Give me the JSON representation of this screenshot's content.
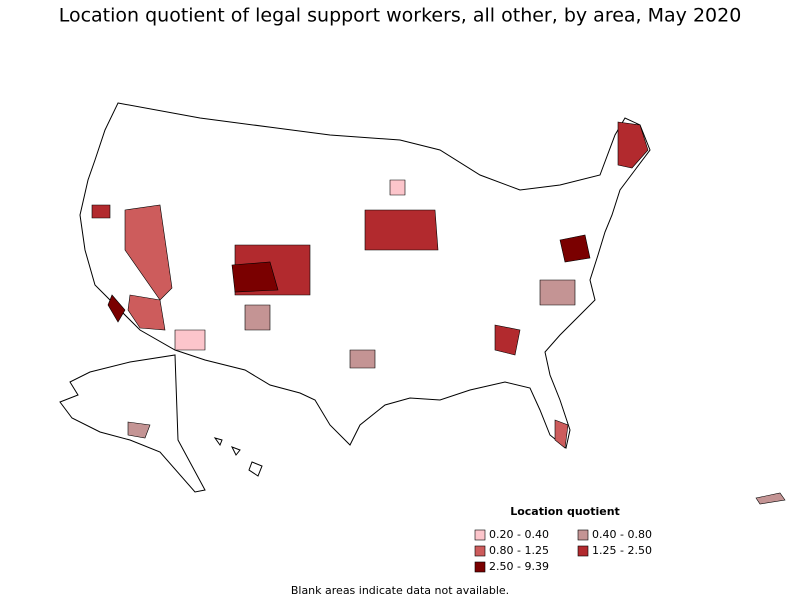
{
  "title": "Location quotient of legal support workers, all other, by area, May 2020",
  "legend": {
    "title": "Location quotient",
    "items": [
      {
        "label": "0.20 - 0.40",
        "color": "#fcc5cb"
      },
      {
        "label": "0.40 - 0.80",
        "color": "#c49494"
      },
      {
        "label": "0.80 - 1.25",
        "color": "#cd5c5c"
      },
      {
        "label": "1.25 - 2.50",
        "color": "#b22a2e"
      },
      {
        "label": "2.50 - 9.39",
        "color": "#7a0000"
      }
    ]
  },
  "note": "Blank areas indicate data not available."
}
